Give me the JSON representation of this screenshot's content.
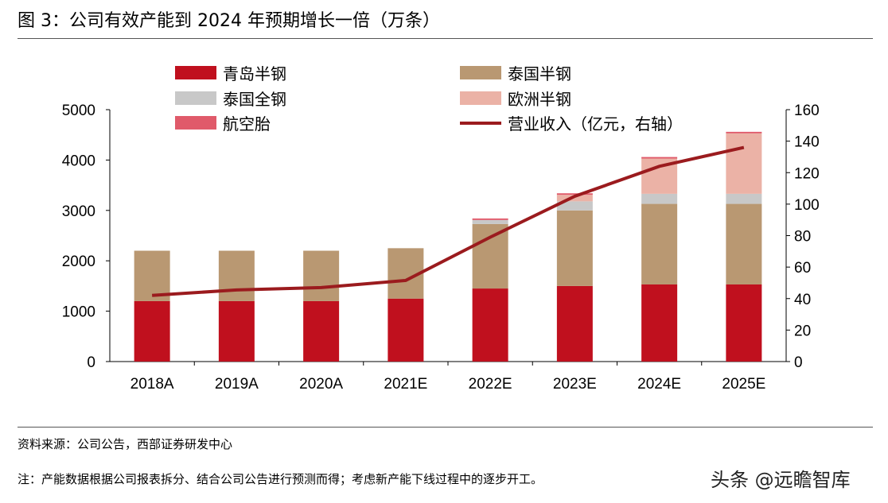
{
  "title": "图 3：公司有效产能到 2024 年预期增长一倍（万条）",
  "source": "资料来源：公司公告，西部证券研发中心",
  "note": "注：产能数据根据公司报表拆分、结合公司公告进行预测而得；考虑新产能下线过程中的逐步开工。",
  "watermark": "头条 @远瞻智库",
  "chart_data": {
    "type": "bar",
    "stacked": true,
    "title": "图 3：公司有效产能到 2024 年预期增长一倍（万条）",
    "categories": [
      "2018A",
      "2019A",
      "2020A",
      "2021E",
      "2022E",
      "2023E",
      "2024E",
      "2025E"
    ],
    "series": [
      {
        "name": "青岛半钢",
        "color": "#c0101e",
        "values": [
          1200,
          1200,
          1200,
          1250,
          1450,
          1500,
          1530,
          1530
        ]
      },
      {
        "name": "泰国半钢",
        "color": "#b99872",
        "values": [
          1000,
          1000,
          1000,
          1000,
          1280,
          1500,
          1600,
          1600
        ]
      },
      {
        "name": "泰国全钢",
        "color": "#c8c8c8",
        "values": [
          0,
          0,
          0,
          0,
          80,
          180,
          200,
          200
        ]
      },
      {
        "name": "欧洲半钢",
        "color": "#ebb2a6",
        "values": [
          0,
          0,
          0,
          0,
          0,
          130,
          700,
          1200
        ]
      },
      {
        "name": "航空胎",
        "color": "#e05a6a",
        "values": [
          0,
          0,
          0,
          0,
          30,
          30,
          30,
          30
        ]
      }
    ],
    "line_series": {
      "name": "营业收入（亿元，右轴）",
      "color": "#9b1b1e",
      "axis": "right",
      "values": [
        42,
        45.5,
        47,
        51.5,
        79,
        105,
        124,
        136
      ]
    },
    "y_left": {
      "ylim": [
        0,
        5000
      ],
      "ticks": [
        "0",
        "1000",
        "2000",
        "3000",
        "4000",
        "5000"
      ]
    },
    "y_right": {
      "ylim": [
        0,
        160
      ],
      "ticks": [
        "0",
        "20",
        "40",
        "60",
        "80",
        "100",
        "120",
        "140",
        "160"
      ]
    },
    "legend_placement": "top",
    "grid": false
  }
}
